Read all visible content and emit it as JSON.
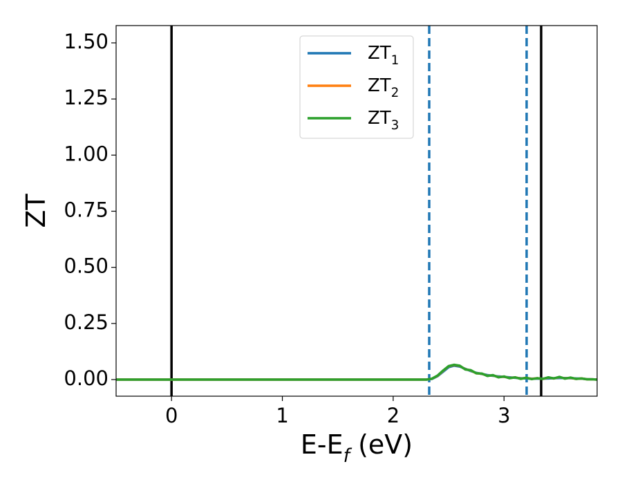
{
  "chart_data": {
    "type": "line",
    "xlabel": "E-E$_f$ (eV)",
    "ylabel": "ZT",
    "x": [
      -0.5,
      2.0,
      2.3,
      2.35,
      2.4,
      2.45,
      2.5,
      2.55,
      2.6,
      2.65,
      2.7,
      2.75,
      2.8,
      2.85,
      2.9,
      2.95,
      3.0,
      3.05,
      3.1,
      3.15,
      3.2,
      3.25,
      3.3,
      3.35,
      3.4,
      3.45,
      3.5,
      3.55,
      3.6,
      3.65,
      3.7,
      3.75,
      3.8,
      3.84
    ],
    "series": [
      {
        "name": "ZT$_1$",
        "color": "#1f77b4",
        "values": [
          0,
          0,
          0,
          0.003,
          0.015,
          0.035,
          0.055,
          0.062,
          0.058,
          0.048,
          0.038,
          0.03,
          0.025,
          0.02,
          0.017,
          0.014,
          0.012,
          0.01,
          0.008,
          0.006,
          0.005,
          0.004,
          0.004,
          0.004,
          0.005,
          0.006,
          0.007,
          0.007,
          0.006,
          0.005,
          0.004,
          0.002,
          0.001,
          0
        ]
      },
      {
        "name": "ZT$_2$",
        "color": "#ff7f0e",
        "values": [
          0,
          0,
          0,
          0.004,
          0.017,
          0.039,
          0.059,
          0.065,
          0.061,
          0.046,
          0.041,
          0.028,
          0.026,
          0.017,
          0.019,
          0.011,
          0.013,
          0.007,
          0.01,
          0.004,
          0.008,
          0.003,
          0.006,
          0.003,
          0.009,
          0.005,
          0.011,
          0.005,
          0.008,
          0.003,
          0.005,
          0.001,
          0.001,
          0
        ]
      },
      {
        "name": "ZT$_3$",
        "color": "#2ca02c",
        "values": [
          0,
          0,
          0,
          0.004,
          0.018,
          0.04,
          0.06,
          0.066,
          0.062,
          0.045,
          0.042,
          0.028,
          0.027,
          0.016,
          0.02,
          0.01,
          0.014,
          0.006,
          0.01,
          0.003,
          0.008,
          0.002,
          0.006,
          0.003,
          0.01,
          0.005,
          0.012,
          0.004,
          0.009,
          0.003,
          0.005,
          0.001,
          0.001,
          0
        ]
      }
    ],
    "vlines": [
      {
        "x": 0,
        "color": "#000000",
        "style": "solid"
      },
      {
        "x": 3.335,
        "color": "#000000",
        "style": "solid"
      },
      {
        "x": 2.325,
        "color": "#1f77b4",
        "style": "dashed"
      },
      {
        "x": 3.204,
        "color": "#1f77b4",
        "style": "dashed"
      }
    ],
    "xlim": [
      -0.5,
      3.84
    ],
    "ylim": [
      -0.074,
      1.577
    ],
    "xticks": [
      0,
      1,
      2,
      3
    ],
    "yticks": [
      {
        "value": 0,
        "label": "0.00"
      },
      {
        "value": 0.25,
        "label": "0.25"
      },
      {
        "value": 0.5,
        "label": "0.50"
      },
      {
        "value": 0.75,
        "label": "0.75"
      },
      {
        "value": 1,
        "label": "1.00"
      },
      {
        "value": 1.25,
        "label": "1.25"
      },
      {
        "value": 1.5,
        "label": "1.50"
      }
    ],
    "grid": false,
    "legend": "upper center"
  }
}
